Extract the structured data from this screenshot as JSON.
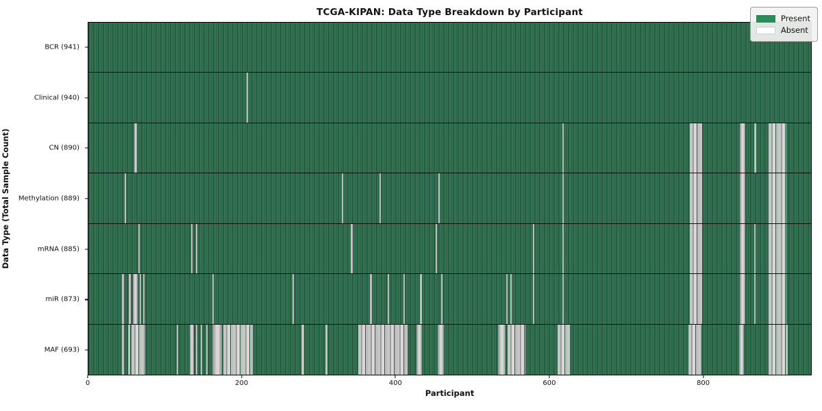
{
  "chart_data": {
    "type": "heatmap",
    "title": "TCGA-KIPAN: Data Type Breakdown by Participant",
    "xlabel": "Participant",
    "ylabel": "Data Type (Total Sample Count)",
    "xlim": [
      0,
      941
    ],
    "xticks": [
      0,
      200,
      400,
      600,
      800
    ],
    "grid": false,
    "legend_position": "upper right",
    "legend": [
      {
        "label": "Present",
        "color": "#2e8b57"
      },
      {
        "label": "Absent",
        "color": "#ffffff"
      }
    ],
    "colors": {
      "present": "#2e8b57",
      "absent": "#ffffff",
      "row_divider": "#0e0e0e"
    },
    "rows": [
      {
        "label": "BCR (941)",
        "data_type": "BCR",
        "total_samples": 941,
        "absent_ranges": []
      },
      {
        "label": "Clinical (940)",
        "data_type": "Clinical",
        "total_samples": 940,
        "absent_ranges": [
          [
            206,
            208
          ]
        ]
      },
      {
        "label": "CN (890)",
        "data_type": "CN",
        "total_samples": 890,
        "absent_ranges": [
          [
            60,
            63
          ],
          [
            617,
            619
          ],
          [
            783,
            799
          ],
          [
            848,
            855
          ],
          [
            867,
            870
          ],
          [
            886,
            909
          ]
        ]
      },
      {
        "label": "Methylation (889)",
        "data_type": "Methylation",
        "total_samples": 889,
        "absent_ranges": [
          [
            47,
            49
          ],
          [
            330,
            332
          ],
          [
            379,
            381
          ],
          [
            456,
            458
          ],
          [
            617,
            619
          ],
          [
            783,
            799
          ],
          [
            848,
            855
          ],
          [
            886,
            909
          ]
        ]
      },
      {
        "label": "mRNA (885)",
        "data_type": "mRNA",
        "total_samples": 885,
        "absent_ranges": [
          [
            65,
            67
          ],
          [
            134,
            136
          ],
          [
            140,
            142
          ],
          [
            342,
            344
          ],
          [
            452,
            454
          ],
          [
            579,
            581
          ],
          [
            617,
            619
          ],
          [
            783,
            799
          ],
          [
            848,
            855
          ],
          [
            867,
            869
          ],
          [
            886,
            909
          ]
        ]
      },
      {
        "label": "miR (873)",
        "data_type": "miR",
        "total_samples": 873,
        "absent_ranges": [
          [
            44,
            46
          ],
          [
            53,
            55
          ],
          [
            58,
            64
          ],
          [
            67,
            69
          ],
          [
            71,
            73
          ],
          [
            161,
            163
          ],
          [
            266,
            268
          ],
          [
            367,
            369
          ],
          [
            390,
            392
          ],
          [
            410,
            412
          ],
          [
            432,
            434
          ],
          [
            459,
            461
          ],
          [
            544,
            546
          ],
          [
            549,
            551
          ],
          [
            579,
            581
          ],
          [
            617,
            619
          ],
          [
            783,
            799
          ],
          [
            848,
            855
          ],
          [
            867,
            869
          ],
          [
            886,
            909
          ]
        ]
      },
      {
        "label": "MAF (693)",
        "data_type": "MAF",
        "total_samples": 693,
        "absent_ranges": [
          [
            44,
            46
          ],
          [
            52,
            54
          ],
          [
            56,
            74
          ],
          [
            115,
            117
          ],
          [
            132,
            137
          ],
          [
            140,
            142
          ],
          [
            146,
            148
          ],
          [
            153,
            155
          ],
          [
            161,
            174
          ],
          [
            176,
            214
          ],
          [
            277,
            281
          ],
          [
            309,
            311
          ],
          [
            351,
            416
          ],
          [
            427,
            434
          ],
          [
            455,
            463
          ],
          [
            533,
            543
          ],
          [
            546,
            569
          ],
          [
            611,
            627
          ],
          [
            781,
            798
          ],
          [
            847,
            854
          ],
          [
            886,
            911
          ]
        ]
      }
    ]
  }
}
